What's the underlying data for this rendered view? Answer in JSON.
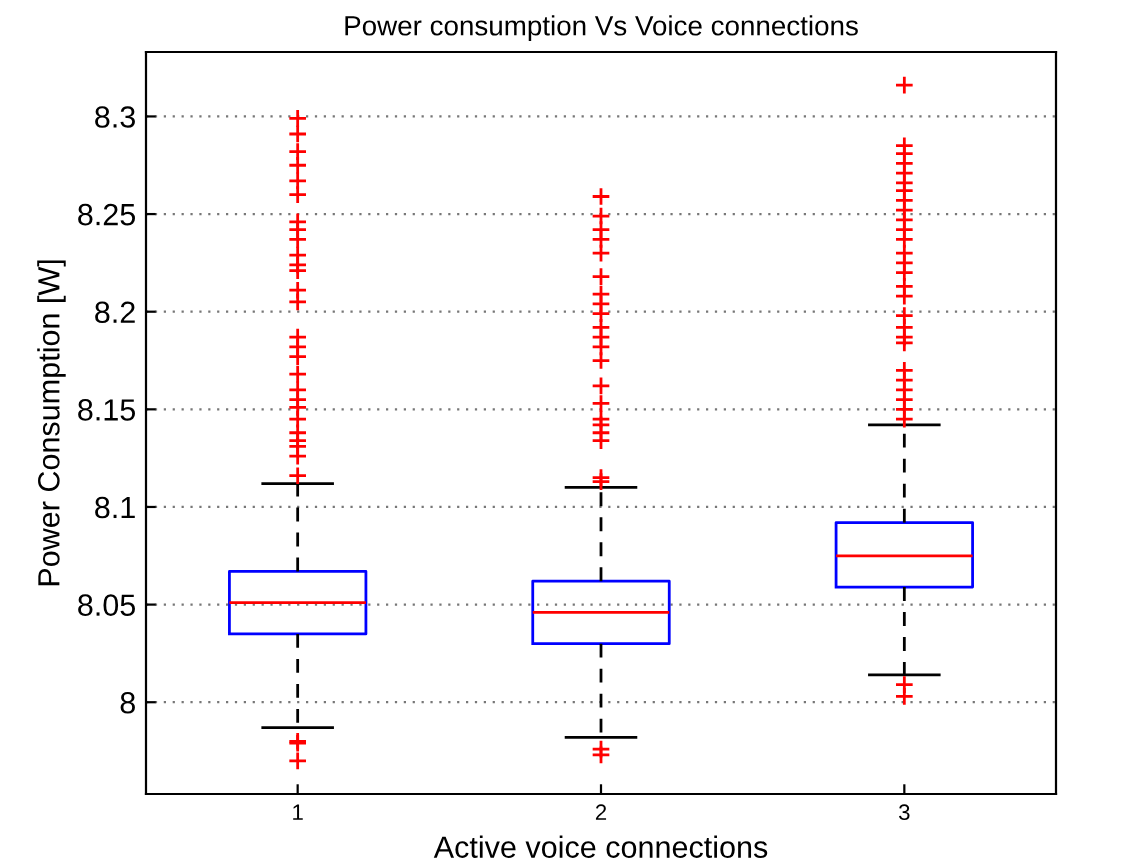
{
  "chart_data": {
    "type": "box",
    "title": "Power consumption Vs Voice connections",
    "xlabel": "Active voice connections",
    "ylabel": "Power Consumption [W]",
    "categories": [
      "1",
      "2",
      "3"
    ],
    "ylim": [
      7.953,
      8.333
    ],
    "yticks": [
      8,
      8.05,
      8.1,
      8.15,
      8.2,
      8.25,
      8.3
    ],
    "grid": "y",
    "marker": "cross",
    "boxes": [
      {
        "low": 7.987,
        "q1": 8.035,
        "median": 8.051,
        "q3": 8.067,
        "high": 8.112,
        "outliers": [
          7.98,
          7.979,
          7.97,
          8.116,
          8.126,
          8.131,
          8.134,
          8.138,
          8.145,
          8.151,
          8.155,
          8.16,
          8.168,
          8.177,
          8.182,
          8.187,
          8.205,
          8.211,
          8.221,
          8.224,
          8.229,
          8.237,
          8.242,
          8.246,
          8.26,
          8.267,
          8.275,
          8.282,
          8.291,
          8.299
        ]
      },
      {
        "low": 7.982,
        "q1": 8.03,
        "median": 8.046,
        "q3": 8.062,
        "high": 8.11,
        "outliers": [
          7.976,
          7.973,
          8.113,
          8.115,
          8.134,
          8.138,
          8.142,
          8.145,
          8.153,
          8.162,
          8.175,
          8.182,
          8.187,
          8.192,
          8.199,
          8.204,
          8.209,
          8.218,
          8.23,
          8.237,
          8.242,
          8.249,
          8.259
        ]
      },
      {
        "low": 8.014,
        "q1": 8.059,
        "median": 8.075,
        "q3": 8.092,
        "high": 8.142,
        "outliers": [
          8.009,
          8.003,
          8.145,
          8.15,
          8.155,
          8.16,
          8.165,
          8.17,
          8.184,
          8.187,
          8.192,
          8.198,
          8.208,
          8.213,
          8.22,
          8.225,
          8.23,
          8.237,
          8.242,
          8.247,
          8.252,
          8.257,
          8.262,
          8.266,
          8.271,
          8.276,
          8.281,
          8.285,
          8.316
        ]
      }
    ]
  }
}
